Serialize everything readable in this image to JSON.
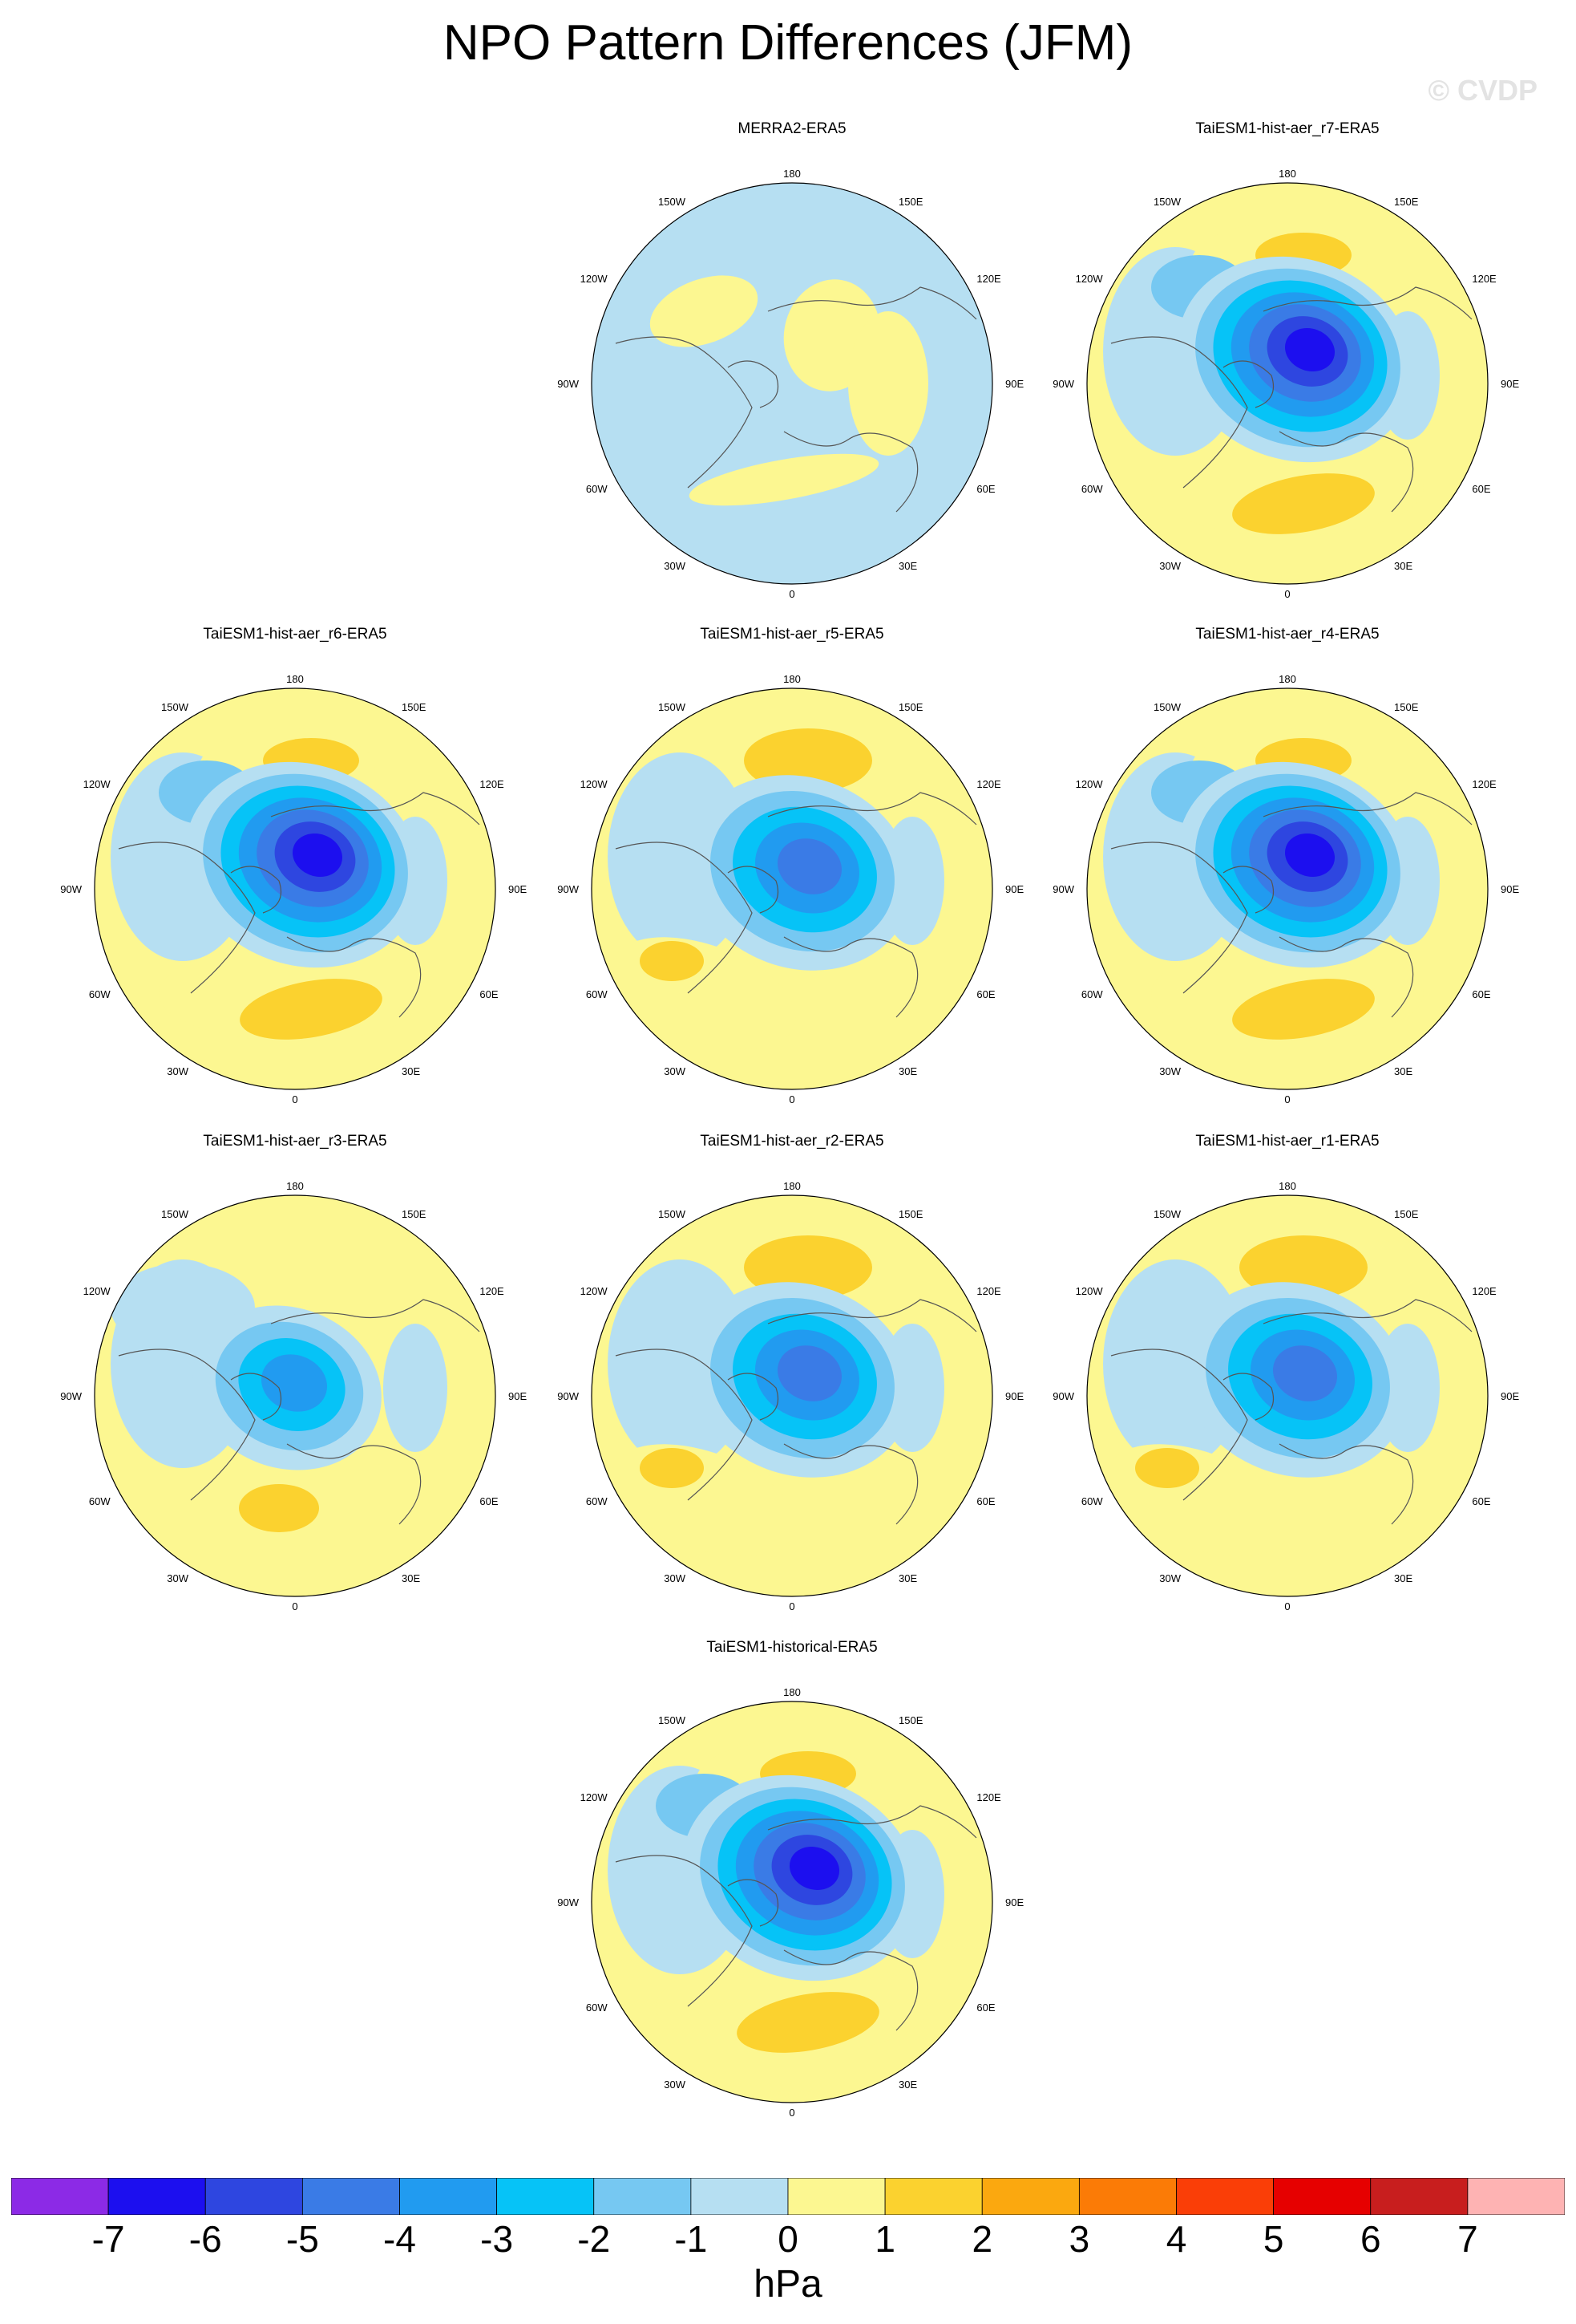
{
  "title": "NPO Pattern Differences (JFM)",
  "watermark": "© CVDP",
  "lon_labels": {
    "top": "180",
    "bottom": "0",
    "upper_left_1": "150W",
    "upper_left_2": "120W",
    "left": "90W",
    "lower_left_1": "60W",
    "lower_left_2": "30W",
    "upper_right_1": "150E",
    "upper_right_2": "120E",
    "right": "90E",
    "lower_right_1": "60E",
    "lower_right_2": "30E"
  },
  "panels": [
    {
      "title": "MERRA2-ERA5",
      "pattern": "near-zero"
    },
    {
      "title": "TaiESM1-hist-aer_r7-ERA5",
      "pattern": "strong"
    },
    {
      "title": "TaiESM1-hist-aer_r6-ERA5",
      "pattern": "strong"
    },
    {
      "title": "TaiESM1-hist-aer_r5-ERA5",
      "pattern": "moderate"
    },
    {
      "title": "TaiESM1-hist-aer_r4-ERA5",
      "pattern": "strong"
    },
    {
      "title": "TaiESM1-hist-aer_r3-ERA5",
      "pattern": "weak"
    },
    {
      "title": "TaiESM1-hist-aer_r2-ERA5",
      "pattern": "moderate"
    },
    {
      "title": "TaiESM1-hist-aer_r1-ERA5",
      "pattern": "moderate"
    },
    {
      "title": "TaiESM1-historical-ERA5",
      "pattern": "strong"
    }
  ],
  "colorbar": {
    "unit": "hPa",
    "colors": [
      "#8c2ae6",
      "#1c0fef",
      "#2e46e0",
      "#3a7be6",
      "#219bf0",
      "#06c3f7",
      "#76c8f2",
      "#b6dff2",
      "#fcf791",
      "#fbd22f",
      "#fba80f",
      "#fb7b06",
      "#fa3e07",
      "#e60000",
      "#c81e1e",
      "#feb3b3"
    ],
    "ticks": [
      "-7",
      "-6",
      "-5",
      "-4",
      "-3",
      "-2",
      "-1",
      "0",
      "1",
      "2",
      "3",
      "4",
      "5",
      "6",
      "7"
    ]
  }
}
